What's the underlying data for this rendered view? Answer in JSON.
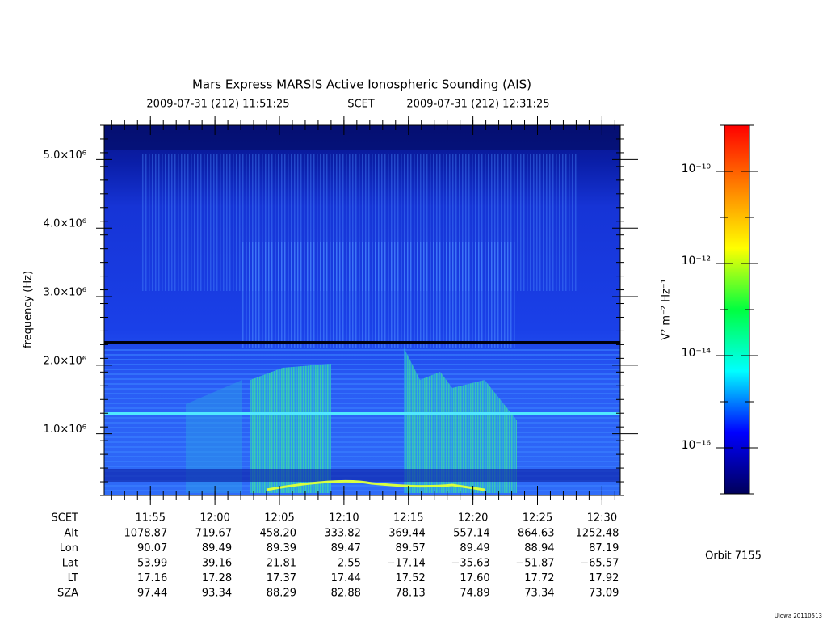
{
  "chart_data": {
    "type": "spectrogram",
    "title": "Mars Express MARSIS Active Ionospheric Sounding (AIS)",
    "start": "2009-07-31 (212) 11:51:25",
    "time_system": "SCET",
    "end": "2009-07-31 (212) 12:31:25",
    "y_label": "frequency (Hz)",
    "xlim": [
      "11:51:25",
      "12:31:25"
    ],
    "xticks": [
      "11:55",
      "12:00",
      "12:05",
      "12:10",
      "12:15",
      "12:20",
      "12:25",
      "12:30"
    ],
    "ylim": [
      100000,
      5500000
    ],
    "yticks": [
      {
        "value": 1000000,
        "label": "1.0×10⁶"
      },
      {
        "value": 2000000,
        "label": "2.0×10⁶"
      },
      {
        "value": 3000000,
        "label": "3.0×10⁶"
      },
      {
        "value": 4000000,
        "label": "4.0×10⁶"
      },
      {
        "value": 5000000,
        "label": "5.0×10⁶"
      }
    ],
    "colorbar": {
      "label": "V² m⁻² Hz⁻¹",
      "log": true,
      "lim": [
        1e-17,
        1e-09
      ],
      "ticks": [
        {
          "value": 1e-16,
          "label": "10⁻¹⁶"
        },
        {
          "value": 1e-14,
          "label": "10⁻¹⁴"
        },
        {
          "value": 1e-12,
          "label": "10⁻¹²"
        },
        {
          "value": 1e-10,
          "label": "10⁻¹⁰"
        }
      ],
      "colors": [
        "#00005a",
        "#0000ff",
        "#00ffff",
        "#00ff40",
        "#ffff00",
        "#ff8000",
        "#ff0000"
      ]
    },
    "ephemeris": {
      "time_label": "SCET",
      "rows": [
        {
          "name": "Alt",
          "values": [
            "1078.87",
            "719.67",
            "458.20",
            "333.82",
            "369.44",
            "557.14",
            "864.63",
            "1252.48"
          ]
        },
        {
          "name": "Lon",
          "values": [
            "90.07",
            "89.49",
            "89.39",
            "89.47",
            "89.57",
            "89.49",
            "88.94",
            "87.19"
          ]
        },
        {
          "name": "Lat",
          "values": [
            "53.99",
            "39.16",
            "21.81",
            "2.55",
            "−17.14",
            "−35.63",
            "−51.87",
            "−65.57"
          ]
        },
        {
          "name": "LT",
          "values": [
            "17.16",
            "17.28",
            "17.37",
            "17.44",
            "17.52",
            "17.60",
            "17.72",
            "17.92"
          ]
        },
        {
          "name": "SZA",
          "values": [
            "97.44",
            "93.34",
            "88.29",
            "82.88",
            "78.13",
            "74.89",
            "73.34",
            "73.09"
          ]
        }
      ]
    },
    "orbit": "Orbit 7155",
    "credit": "Uiowa 20110513"
  }
}
